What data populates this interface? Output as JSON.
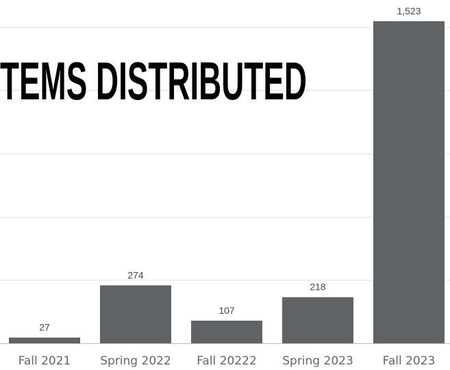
{
  "chart_data": {
    "type": "bar",
    "title": "TEMS DISTRIBUTED",
    "categories": [
      "Fall 2021",
      "Spring 2022",
      "Fall 20222",
      "Spring 2023",
      "Fall 2023"
    ],
    "values": [
      27,
      274,
      107,
      218,
      1523
    ],
    "value_labels": [
      "27",
      "274",
      "107",
      "218",
      "1,523"
    ],
    "xlabel": "",
    "ylabel": "",
    "grid": true,
    "legend": "none",
    "colors": {
      "bar": "#5f6366",
      "grid": "#dddddd",
      "title": "#000000"
    }
  }
}
